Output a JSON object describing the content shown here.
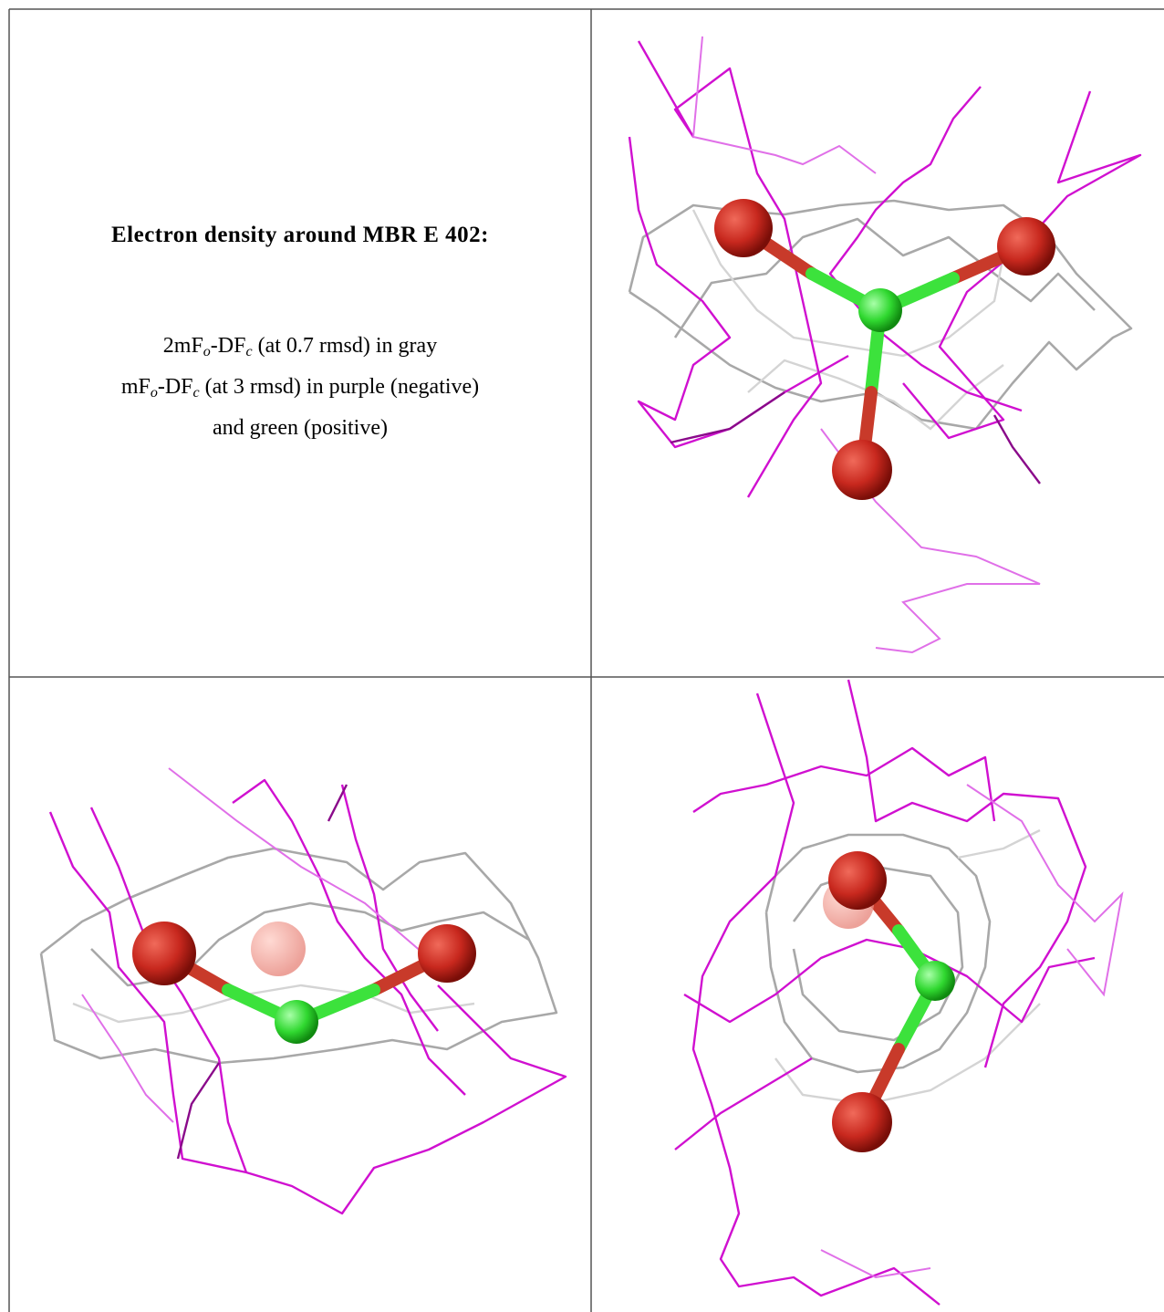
{
  "caption": {
    "title": "Electron density around MBR E 402:",
    "lines": [
      [
        "2mF",
        "o",
        "-DF",
        "c",
        " (at 0.7 rmsd) in gray"
      ],
      [
        "mF",
        "o",
        "-DF",
        "c",
        " (at 3 rmsd) in purple (negative)"
      ],
      [
        "and green (positive)"
      ]
    ]
  }
}
